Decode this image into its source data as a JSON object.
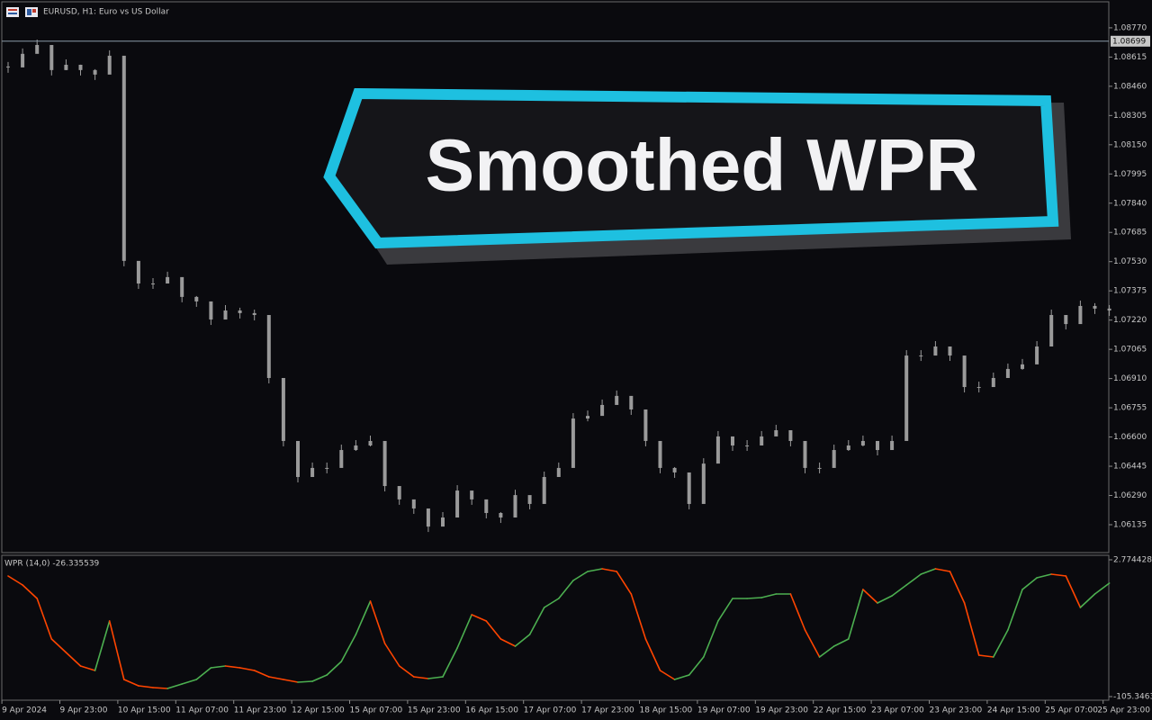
{
  "header": {
    "title": "EURUSD, H1:  Euro vs US Dollar"
  },
  "banner": {
    "text": "Smoothed WPR"
  },
  "chart_data": [
    {
      "type": "candlestick",
      "categories": [
        null,
        "9 Apr 2024",
        null,
        null,
        null,
        "9 Apr 23:00",
        null,
        null,
        null,
        "10 Apr 15:00",
        null,
        null,
        null,
        "11 Apr 07:00",
        null,
        null,
        null,
        "11 Apr 23:00",
        null,
        null,
        null,
        "12 Apr 15:00",
        null,
        null,
        null,
        "15 Apr 07:00",
        null,
        null,
        null,
        "15 Apr 23:00",
        null,
        null,
        null,
        "16 Apr 15:00",
        null,
        null,
        null,
        "17 Apr 07:00",
        null,
        null,
        null,
        "17 Apr 23:00",
        null,
        null,
        null,
        "18 Apr 15:00",
        null,
        null,
        null,
        "19 Apr 07:00",
        null,
        null,
        null,
        "19 Apr 23:00",
        null,
        null,
        null,
        "22 Apr 15:00",
        null,
        null,
        null,
        "23 Apr 07:00",
        null,
        null,
        null,
        "23 Apr 23:00",
        null,
        null,
        null,
        "24 Apr 15:00",
        null,
        null,
        null,
        "25 Apr 07:00",
        null,
        null,
        null,
        "25 Apr 23:00"
      ],
      "values": [
        1.0856,
        1.08632,
        1.08679,
        1.08546,
        1.08574,
        1.08546,
        1.08522,
        1.08622,
        1.07534,
        1.07414,
        1.07414,
        1.07448,
        1.07343,
        1.07319,
        1.07223,
        1.07271,
        1.07257,
        1.07247,
        1.06913,
        1.06579,
        1.06388,
        1.06436,
        1.06436,
        1.06531,
        1.06555,
        1.06579,
        1.0634,
        1.06269,
        1.06221,
        1.06125,
        1.06173,
        1.06316,
        1.06269,
        1.06197,
        1.06173,
        1.06292,
        1.06245,
        1.06388,
        1.06436,
        1.06698,
        1.06712,
        1.0677,
        1.06818,
        1.06746,
        1.06579,
        1.06436,
        1.06412,
        1.06245,
        1.06459,
        1.06603,
        1.06555,
        1.06555,
        1.06603,
        1.06636,
        1.06579,
        1.06436,
        1.06436,
        1.06531,
        1.06555,
        1.06579,
        1.06531,
        1.06579,
        1.07032,
        1.07032,
        1.0708,
        1.07032,
        1.06865,
        1.06865,
        1.06913,
        1.06961,
        1.06985,
        1.0708,
        1.07247,
        1.07199,
        1.07295,
        1.07281,
        1.07271,
        null
      ],
      "color": "#9a9a9a",
      "current_price": 1.08699,
      "ylim": [
        1.05987,
        1.08908
      ],
      "yticks": [
        {
          "value": 1.0877,
          "label": "1.08770"
        },
        {
          "value": 1.08615,
          "label": "1.08615"
        },
        {
          "value": 1.0846,
          "label": "1.08460"
        },
        {
          "value": 1.08305,
          "label": "1.08305"
        },
        {
          "value": 1.0815,
          "label": "1.08150"
        },
        {
          "value": 1.07995,
          "label": "1.07995"
        },
        {
          "value": 1.0784,
          "label": "1.07840"
        },
        {
          "value": 1.07685,
          "label": "1.07685"
        },
        {
          "value": 1.0753,
          "label": "1.07530"
        },
        {
          "value": 1.07375,
          "label": "1.07375"
        },
        {
          "value": 1.0722,
          "label": "1.07220"
        },
        {
          "value": 1.07065,
          "label": "1.07065"
        },
        {
          "value": 1.0691,
          "label": "1.06910"
        },
        {
          "value": 1.06755,
          "label": "1.06755"
        },
        {
          "value": 1.066,
          "label": "1.06600"
        },
        {
          "value": 1.06445,
          "label": "1.06445"
        },
        {
          "value": 1.0629,
          "label": "1.06290"
        },
        {
          "value": 1.06135,
          "label": "1.06135"
        }
      ]
    },
    {
      "type": "line",
      "title": "WPR (14,0) -26.335539",
      "values": [
        -10.03,
        -17.14,
        -27.81,
        -59.82,
        -70.49,
        -81.16,
        -84.72,
        -45.59,
        -91.83,
        -96.81,
        -98.23,
        -98.94,
        -95.38,
        -91.83,
        -82.58,
        -81.16,
        -82.58,
        -84.72,
        -89.7,
        -91.83,
        -93.96,
        -93.25,
        -88.27,
        -77.6,
        -56.26,
        -29.95,
        -63.38,
        -81.16,
        -89.7,
        -91.12,
        -89.7,
        -66.93,
        -40.61,
        -45.59,
        -59.82,
        -65.51,
        -56.26,
        -34.93,
        -27.81,
        -13.59,
        -6.47,
        -4.34,
        -6.47,
        -24.26,
        -59.82,
        -84.72,
        -91.83,
        -88.27,
        -74.05,
        -45.59,
        -27.81,
        -27.81,
        -27.1,
        -24.26,
        -24.26,
        -52.71,
        -74.05,
        -65.51,
        -59.82,
        -20.7,
        -31.37,
        -25.68,
        -17.14,
        -8.61,
        -4.34,
        -6.47,
        -31.37,
        -72.63,
        -74.05,
        -52.71,
        -20.7,
        -11.45,
        -8.61,
        -10.03,
        -34.93,
        -24.26,
        -15.72,
        null
      ],
      "up_color": "#4caf50",
      "down_color": "#ff4500",
      "ylim": [
        -105.3463,
        2.774428
      ],
      "yticks": [
        2.774428,
        -105.3463
      ]
    }
  ]
}
